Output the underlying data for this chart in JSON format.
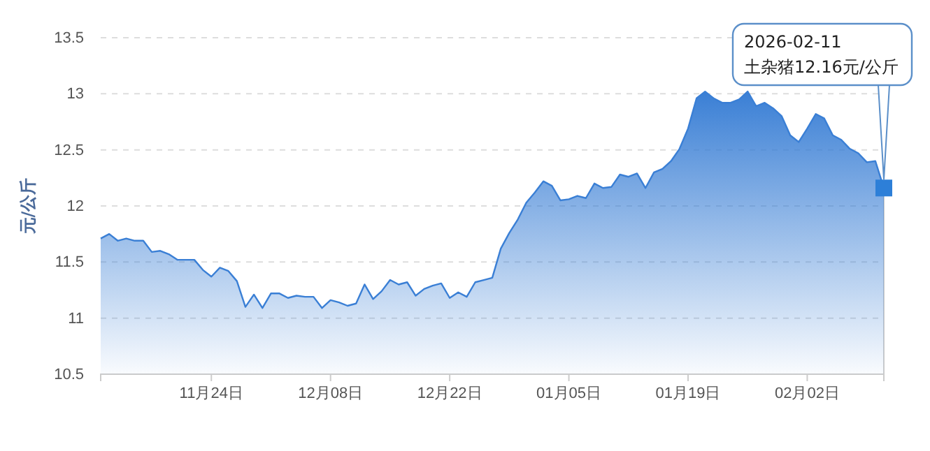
{
  "chart_data": {
    "type": "area",
    "ylabel": "元/公斤",
    "ylim": [
      10.5,
      13.5
    ],
    "yticks": [
      10.5,
      11,
      11.5,
      12,
      12.5,
      13,
      13.5
    ],
    "grid": "y",
    "line_style": "solid",
    "marker": "none",
    "xlim": [
      "2025-11-11",
      "2026-02-11"
    ],
    "xticks": [
      {
        "value": "2025-11-24",
        "label": "11月24日"
      },
      {
        "value": "2025-12-08",
        "label": "12月08日"
      },
      {
        "value": "2025-12-22",
        "label": "12月22日"
      },
      {
        "value": "2026-01-05",
        "label": "01月05日"
      },
      {
        "value": "2026-01-19",
        "label": "01月19日"
      },
      {
        "value": "2026-02-02",
        "label": "02月02日"
      }
    ],
    "x": [
      "2025-11-11",
      "2025-11-12",
      "2025-11-13",
      "2025-11-14",
      "2025-11-15",
      "2025-11-16",
      "2025-11-17",
      "2025-11-18",
      "2025-11-19",
      "2025-11-20",
      "2025-11-21",
      "2025-11-22",
      "2025-11-23",
      "2025-11-24",
      "2025-11-25",
      "2025-11-26",
      "2025-11-27",
      "2025-11-28",
      "2025-11-29",
      "2025-11-30",
      "2025-12-01",
      "2025-12-02",
      "2025-12-03",
      "2025-12-04",
      "2025-12-05",
      "2025-12-06",
      "2025-12-07",
      "2025-12-08",
      "2025-12-09",
      "2025-12-10",
      "2025-12-11",
      "2025-12-12",
      "2025-12-13",
      "2025-12-14",
      "2025-12-15",
      "2025-12-16",
      "2025-12-17",
      "2025-12-18",
      "2025-12-19",
      "2025-12-20",
      "2025-12-21",
      "2025-12-22",
      "2025-12-23",
      "2025-12-24",
      "2025-12-25",
      "2025-12-26",
      "2025-12-27",
      "2025-12-28",
      "2025-12-29",
      "2025-12-30",
      "2025-12-31",
      "2026-01-01",
      "2026-01-02",
      "2026-01-03",
      "2026-01-04",
      "2026-01-05",
      "2026-01-06",
      "2026-01-07",
      "2026-01-08",
      "2026-01-09",
      "2026-01-10",
      "2026-01-11",
      "2026-01-12",
      "2026-01-13",
      "2026-01-14",
      "2026-01-15",
      "2026-01-16",
      "2026-01-17",
      "2026-01-18",
      "2026-01-19",
      "2026-01-20",
      "2026-01-21",
      "2026-01-22",
      "2026-01-23",
      "2026-01-24",
      "2026-01-25",
      "2026-01-26",
      "2026-01-27",
      "2026-01-28",
      "2026-01-29",
      "2026-01-30",
      "2026-01-31",
      "2026-02-01",
      "2026-02-02",
      "2026-02-03",
      "2026-02-04",
      "2026-02-05",
      "2026-02-06",
      "2026-02-07",
      "2026-02-08",
      "2026-02-09",
      "2026-02-10",
      "2026-02-11"
    ],
    "series": [
      {
        "color": "#3a7fd5",
        "values": [
          11.71,
          11.75,
          11.69,
          11.71,
          11.69,
          11.69,
          11.59,
          11.6,
          11.57,
          11.52,
          11.52,
          11.52,
          11.43,
          11.37,
          11.45,
          11.42,
          11.33,
          11.1,
          11.21,
          11.09,
          11.22,
          11.22,
          11.18,
          11.2,
          11.19,
          11.19,
          11.09,
          11.16,
          11.14,
          11.11,
          11.13,
          11.3,
          11.17,
          11.24,
          11.34,
          11.3,
          11.32,
          11.2,
          11.26,
          11.29,
          11.31,
          11.18,
          11.23,
          11.19,
          11.32,
          11.34,
          11.36,
          11.62,
          11.76,
          11.88,
          12.03,
          12.12,
          12.22,
          12.18,
          12.05,
          12.06,
          12.09,
          12.07,
          12.2,
          12.16,
          12.17,
          12.28,
          12.26,
          12.29,
          12.16,
          12.3,
          12.33,
          12.4,
          12.51,
          12.69,
          12.96,
          13.02,
          12.96,
          12.92,
          12.92,
          12.95,
          13.02,
          12.89,
          12.92,
          12.87,
          12.8,
          12.63,
          12.57,
          12.69,
          12.82,
          12.78,
          12.63,
          12.59,
          12.51,
          12.47,
          12.39,
          12.4,
          12.16
        ]
      }
    ],
    "annotations": [
      {
        "text": "2026-02-11\n土杂猪12.16元/公斤",
        "x": "2026-02-11",
        "y": 12.16
      }
    ]
  }
}
